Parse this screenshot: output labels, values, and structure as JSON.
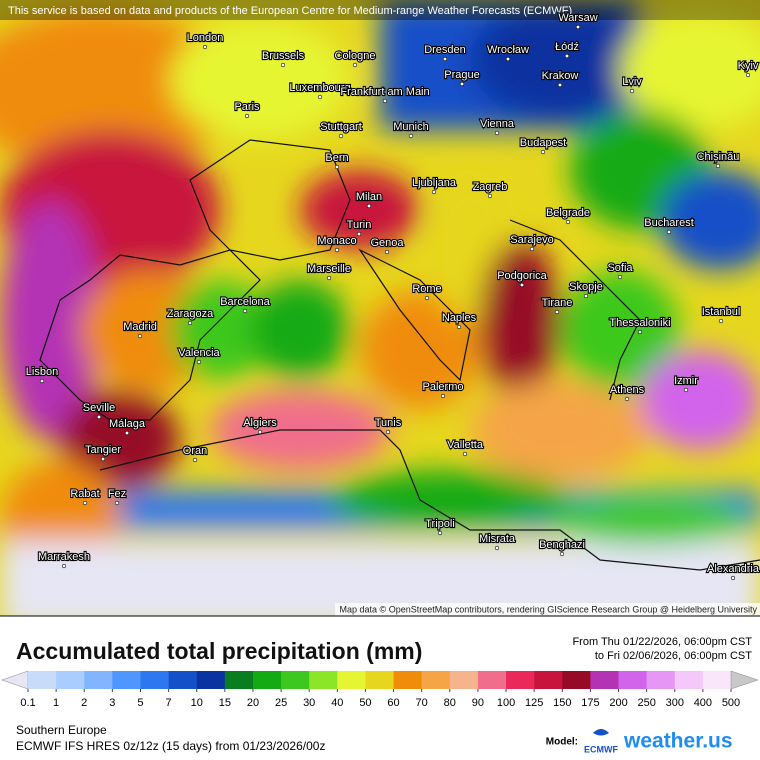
{
  "header_note": "This service is based on data and products of the European Centre for Medium-range Weather Forecasts (ECMWF)",
  "map": {
    "cities": [
      "London",
      "Brussels",
      "Cologne",
      "Dresden",
      "Wrocław",
      "Łódź",
      "Warsaw",
      "Prague",
      "Krakow",
      "Lviv",
      "Kyiv",
      "Paris",
      "Luxembourg",
      "Frankfurt am Main",
      "Stuttgart",
      "Munich",
      "Vienna",
      "Budapest",
      "Chișinău",
      "Bern",
      "Ljubljana",
      "Zagreb",
      "Milan",
      "Turin",
      "Belgrade",
      "Bucharest",
      "Monaco",
      "Genoa",
      "Sarajevo",
      "Marseille",
      "Podgorica",
      "Sofia",
      "Skopje",
      "Rome",
      "Tirane",
      "Istanbul",
      "Barcelona",
      "Zaragoza",
      "Madrid",
      "Naples",
      "Thessaloniki",
      "Valencia",
      "Lisbon",
      "Palermo",
      "Athens",
      "Izmir",
      "Seville",
      "Málaga",
      "Algiers",
      "Tunis",
      "Valletta",
      "Oran",
      "Tangier",
      "Rabat",
      "Fez",
      "Tripoli",
      "Misrata",
      "Benghazi",
      "Marrakesh",
      "Alexandria"
    ],
    "attribution": "Map data © OpenStreetMap contributors, rendering GIScience Research Group @ Heidelberg University"
  },
  "title": "Accumulated total precipitation (mm)",
  "period": [
    "From Thu 01/22/2026, 06:00pm CST",
    "to Fri 02/06/2026, 06:00pm CST"
  ],
  "legend": {
    "ticks": [
      0.1,
      1,
      2,
      3,
      5,
      7,
      10,
      15,
      20,
      25,
      30,
      40,
      50,
      60,
      70,
      80,
      90,
      100,
      125,
      150,
      175,
      200,
      250,
      300,
      400,
      500
    ],
    "colors": [
      "#e6e6f5",
      "#c8dcfa",
      "#aacdff",
      "#82b4ff",
      "#5096ff",
      "#2d78f0",
      "#1450c8",
      "#0a32a0",
      "#0a7d1e",
      "#14aa14",
      "#3cc81e",
      "#8ce628",
      "#e6f532",
      "#e6d71e",
      "#f08c0a",
      "#f5a546",
      "#f5b48c",
      "#f06e8c",
      "#eb285a",
      "#c8143c",
      "#960a28",
      "#b432b4",
      "#d264eb",
      "#e696f5",
      "#f5c8fa",
      "#fae6fa",
      "#c8c8c8"
    ]
  },
  "footer": {
    "region": "Southern Europe",
    "model_line": "ECMWF IFS HRES 0z/12z (15 days) from 01/23/2026/00z",
    "model_label": "Model:",
    "ecmwf": "ECMWF",
    "brand": "weather.us"
  }
}
